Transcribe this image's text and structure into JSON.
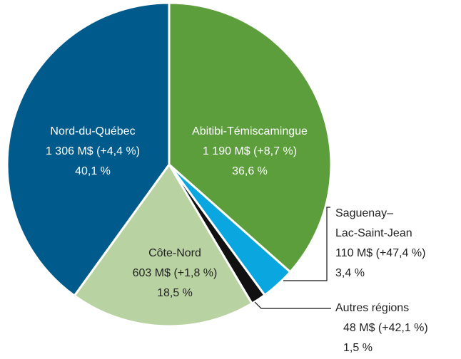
{
  "chart_data": {
    "type": "pie",
    "categories": [
      "Abitibi-Témiscamingue",
      "Saguenay–Lac-Saint-Jean",
      "Autres régions",
      "Côte-Nord",
      "Nord-du-Québec"
    ],
    "amounts": [
      "1 190 M$ (+8,7 %)",
      "110 M$ (+47,4 %)",
      "48 M$ (+42,1 %)",
      "603 M$ (+1,8 %)",
      "1 306 M$ (+4,4 %)"
    ],
    "values": [
      36.6,
      3.4,
      1.5,
      18.5,
      40.1
    ],
    "value_labels": [
      "36,6 %",
      "3,4 %",
      "1,5 %",
      "18,5 %",
      "40,1 %"
    ],
    "colors": [
      "#5b9e3b",
      "#0aa6e0",
      "#111111",
      "#b8d2a2",
      "#005a8b"
    ]
  }
}
